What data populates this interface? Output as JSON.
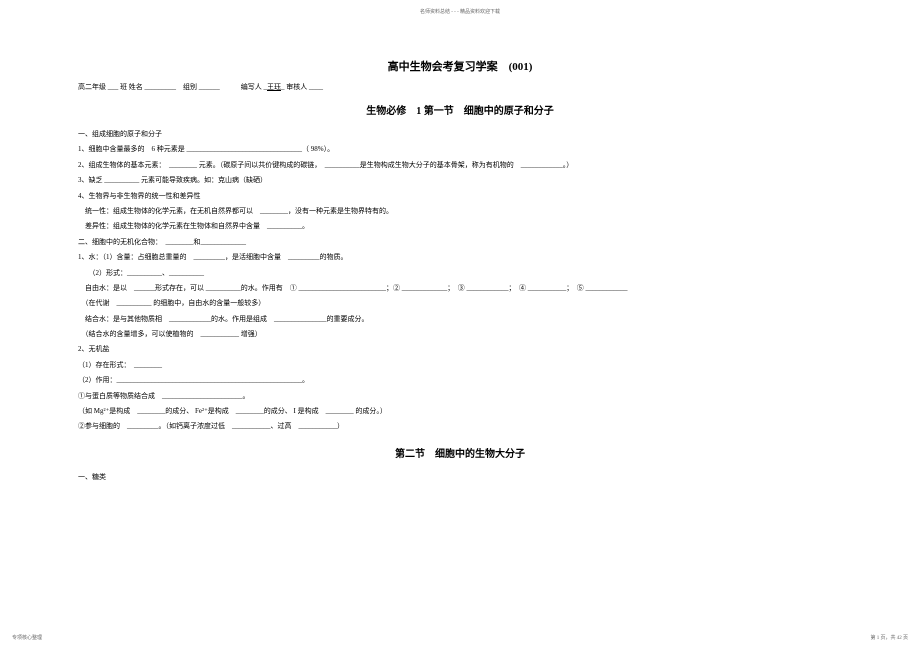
{
  "header_tiny": "名师资料总结 - - - 精品资料欢迎下载",
  "title_main": "高中生物会考复习学案　(001)",
  "info_line": "高二年级 ___ 班 姓名 _________　组别 ______　　　编写人 _王珏_ 审核人 ____",
  "subtitle": "生物必修　1 第一节　细胞中的原子和分子",
  "section1_title": "一、组成细胞的原子和分子",
  "lines": [
    "1、细胞中含量最多的　6 种元素是 _________________________________（ 98%）。",
    "2、组成生物体的基本元素：　________ 元素。（碳原子间以共价键构成的碳链，　__________是生物构成生物大分子的基本骨架，称为有机物的　____________。）",
    "3、缺乏 __________ 元素可能导致疾病。如：克山病（缺硒）",
    "4、生物界与非生物界的统一性和差异性",
    "　统一性：组成生物体的化学元素，在无机自然界都可以　________，没有一种元素是生物界特有的。",
    "　差异性：组成生物体的化学元素在生物体和自然界中含量　__________。"
  ],
  "section2_title": "二、细胞中的无机化合物：　________和_____________",
  "lines2": [
    "1、水：（1）含量：占细胞总重量的　_________，是活细胞中含量　_________的物质。",
    "　　（2）形式：__________、__________",
    "　自由水：是以　______形式存在，可以 __________的水。作用有　① _________________________；② _____________；　③ ____________；　④ ___________；　⑤ ____________",
    "　（在代谢　__________ 的细胞中，自由水的含量一般较多）",
    "　结合水：是与其他物质相　____________的水。作用是组成　_______________的重要成分。",
    "　（结合水的含量增多，可以使植物的　___________ 增强）",
    "2、无机盐",
    "（1）存在形式：　________",
    "（2）作用：_____________________________________________________。",
    "①与蛋白质等物质结合成　_______________________。",
    "（如 Mg²⁺是构成　________的成分、 Fe²⁺是构成　________的成分、 I 是构成　________ 的成分。）",
    "②参与细胞的　_________。（如钙离子浓度过低　___________、过高　___________）"
  ],
  "section3_title": "第二节　细胞中的生物大分子",
  "section3_sub": "一、糖类",
  "footer_left": "专项核心整理",
  "footer_right": "第 1 页，共 42 页",
  "underlined_name": "王珏"
}
